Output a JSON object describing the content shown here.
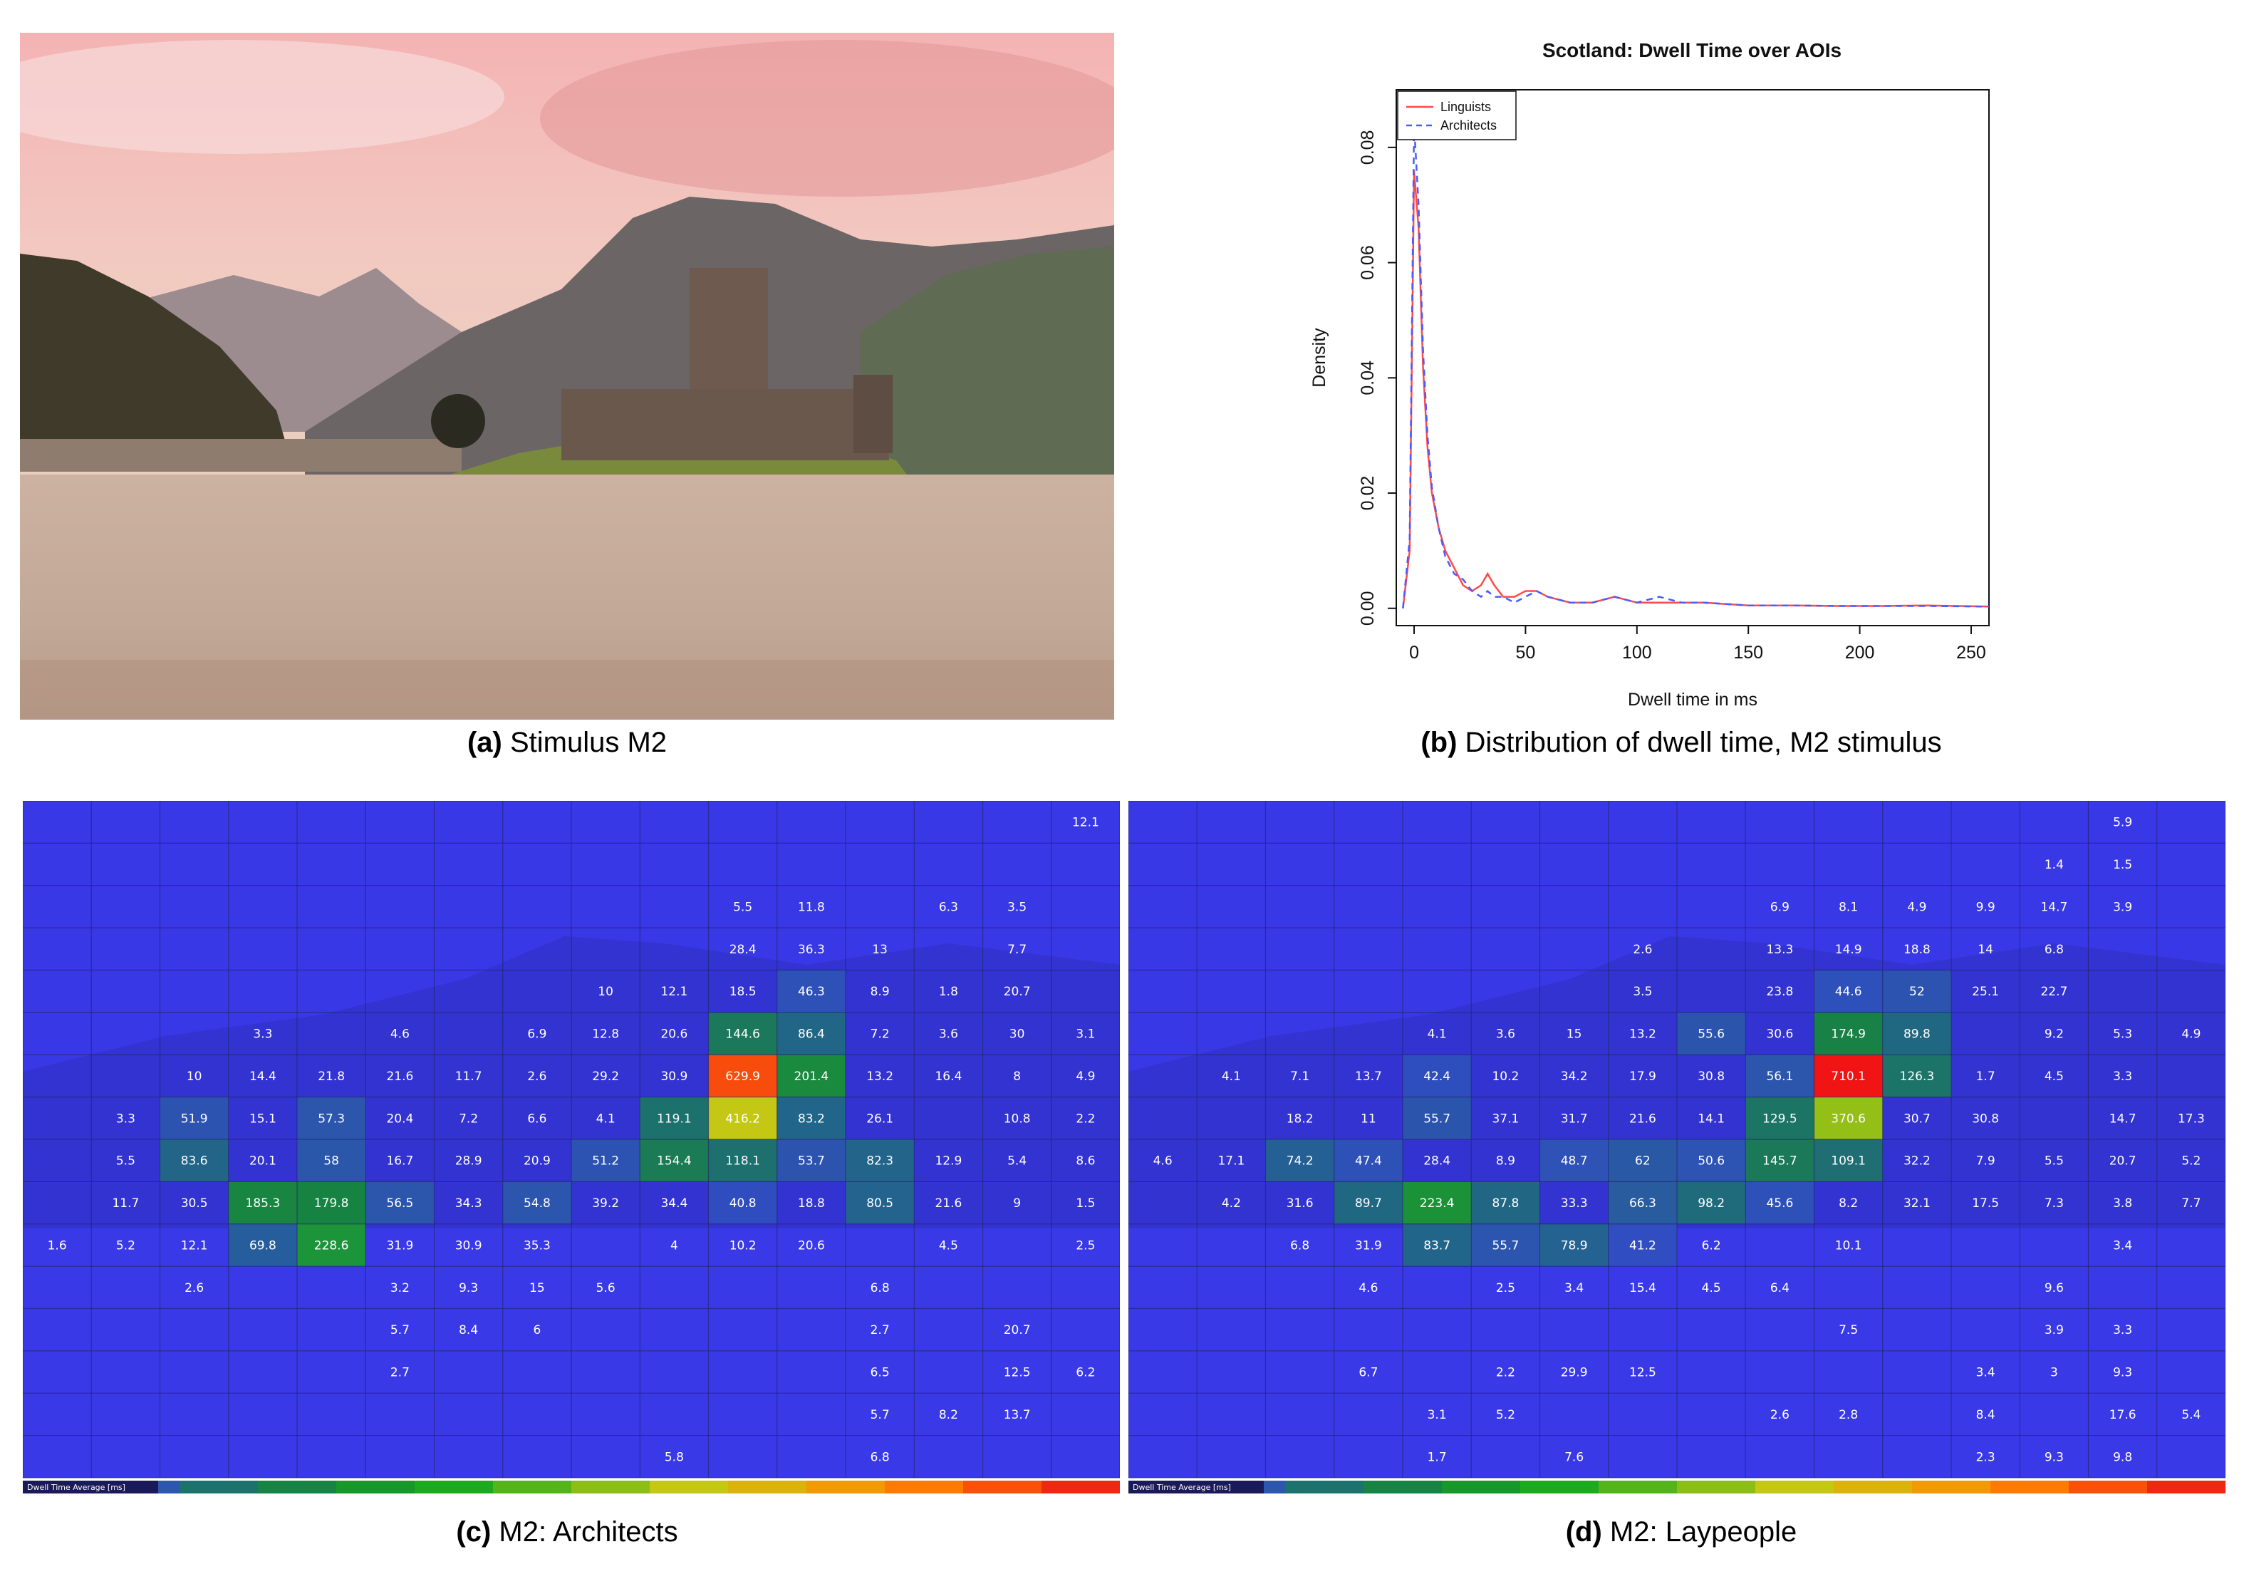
{
  "figure": {
    "captions": {
      "a": {
        "label": "(a)",
        "text": "Stimulus M2"
      },
      "b": {
        "label": "(b)",
        "text": "Distribution of dwell time, M2 stimulus"
      },
      "c": {
        "label": "(c)",
        "text": "M2: Architects"
      },
      "d": {
        "label": "(d)",
        "text": "M2: Laypeople"
      }
    }
  },
  "colors": {
    "linguists": "#ff4a4a",
    "architects": "#4a5cff",
    "heatmap_base": "#3a3ae0"
  },
  "chart_data": [
    {
      "type": "line",
      "title": "Scotland: Dwell Time over AOIs",
      "xlabel": "Dwell time in ms",
      "ylabel": "Density",
      "xlim": [
        -8,
        258
      ],
      "ylim": [
        -0.003,
        0.09
      ],
      "xticks": [
        0,
        50,
        100,
        150,
        200,
        250
      ],
      "yticks": [
        0.0,
        0.02,
        0.04,
        0.06,
        0.08
      ],
      "ytick_labels": [
        "0.00",
        "0.02",
        "0.04",
        "0.06",
        "0.08"
      ],
      "legend": "top-left",
      "series": [
        {
          "name": "Linguists",
          "style": "solid",
          "color": "#ff4a4a",
          "x": [
            -5,
            -2,
            0,
            2,
            4,
            6,
            8,
            11,
            14,
            18,
            22,
            26,
            30,
            33,
            36,
            40,
            45,
            50,
            55,
            60,
            70,
            80,
            90,
            100,
            110,
            120,
            130,
            150,
            170,
            190,
            210,
            230,
            258
          ],
          "y": [
            0.0,
            0.01,
            0.076,
            0.066,
            0.042,
            0.028,
            0.02,
            0.014,
            0.01,
            0.007,
            0.004,
            0.003,
            0.004,
            0.006,
            0.004,
            0.002,
            0.002,
            0.003,
            0.003,
            0.002,
            0.001,
            0.001,
            0.002,
            0.001,
            0.001,
            0.001,
            0.001,
            0.0005,
            0.0005,
            0.0004,
            0.0004,
            0.0005,
            0.0003
          ]
        },
        {
          "name": "Architects",
          "style": "dashed",
          "color": "#4a5cff",
          "x": [
            -5,
            -2,
            0,
            2,
            4,
            6,
            8,
            11,
            14,
            18,
            22,
            26,
            30,
            33,
            36,
            40,
            45,
            50,
            55,
            60,
            70,
            80,
            90,
            100,
            110,
            120,
            130,
            150,
            170,
            190,
            210,
            230,
            258
          ],
          "y": [
            0.0,
            0.012,
            0.084,
            0.07,
            0.045,
            0.03,
            0.021,
            0.014,
            0.009,
            0.006,
            0.005,
            0.003,
            0.002,
            0.003,
            0.002,
            0.002,
            0.001,
            0.002,
            0.003,
            0.002,
            0.001,
            0.001,
            0.002,
            0.001,
            0.002,
            0.001,
            0.001,
            0.0005,
            0.0005,
            0.0004,
            0.0004,
            0.0004,
            0.0003
          ]
        }
      ]
    },
    {
      "type": "heatmap",
      "panel": "c",
      "title": "",
      "legend_label": "Dwell Time Average [ms]",
      "cols": 16,
      "rows": 16,
      "cells": [
        [
          0,
          15,
          "12.1"
        ],
        [
          2,
          10,
          "5.5"
        ],
        [
          2,
          11,
          "11.8"
        ],
        [
          2,
          13,
          "6.3"
        ],
        [
          2,
          14,
          "3.5"
        ],
        [
          3,
          10,
          "28.4"
        ],
        [
          3,
          11,
          "36.3"
        ],
        [
          3,
          12,
          "13"
        ],
        [
          3,
          14,
          "7.7"
        ],
        [
          4,
          8,
          "10"
        ],
        [
          4,
          9,
          "12.1"
        ],
        [
          4,
          10,
          "18.5"
        ],
        [
          4,
          11,
          "46.3"
        ],
        [
          4,
          12,
          "8.9"
        ],
        [
          4,
          13,
          "1.8"
        ],
        [
          4,
          14,
          "20.7"
        ],
        [
          5,
          3,
          "3.3"
        ],
        [
          5,
          5,
          "4.6"
        ],
        [
          5,
          7,
          "6.9"
        ],
        [
          5,
          8,
          "12.8"
        ],
        [
          5,
          9,
          "20.6"
        ],
        [
          5,
          10,
          "144.6"
        ],
        [
          5,
          11,
          "86.4"
        ],
        [
          5,
          12,
          "7.2"
        ],
        [
          5,
          13,
          "3.6"
        ],
        [
          5,
          14,
          "30"
        ],
        [
          5,
          15,
          "3.1"
        ],
        [
          6,
          2,
          "10"
        ],
        [
          6,
          3,
          "14.4"
        ],
        [
          6,
          4,
          "21.8"
        ],
        [
          6,
          5,
          "21.6"
        ],
        [
          6,
          6,
          "11.7"
        ],
        [
          6,
          7,
          "2.6"
        ],
        [
          6,
          8,
          "29.2"
        ],
        [
          6,
          9,
          "30.9"
        ],
        [
          6,
          10,
          "629.9"
        ],
        [
          6,
          11,
          "201.4"
        ],
        [
          6,
          12,
          "13.2"
        ],
        [
          6,
          13,
          "16.4"
        ],
        [
          6,
          14,
          "8"
        ],
        [
          6,
          15,
          "4.9"
        ],
        [
          7,
          1,
          "3.3"
        ],
        [
          7,
          2,
          "51.9"
        ],
        [
          7,
          3,
          "15.1"
        ],
        [
          7,
          4,
          "57.3"
        ],
        [
          7,
          5,
          "20.4"
        ],
        [
          7,
          6,
          "7.2"
        ],
        [
          7,
          7,
          "6.6"
        ],
        [
          7,
          8,
          "4.1"
        ],
        [
          7,
          9,
          "119.1"
        ],
        [
          7,
          10,
          "416.2"
        ],
        [
          7,
          11,
          "83.2"
        ],
        [
          7,
          12,
          "26.1"
        ],
        [
          7,
          14,
          "10.8"
        ],
        [
          7,
          15,
          "2.2"
        ],
        [
          8,
          1,
          "5.5"
        ],
        [
          8,
          2,
          "83.6"
        ],
        [
          8,
          3,
          "20.1"
        ],
        [
          8,
          4,
          "58"
        ],
        [
          8,
          5,
          "16.7"
        ],
        [
          8,
          6,
          "28.9"
        ],
        [
          8,
          7,
          "20.9"
        ],
        [
          8,
          8,
          "51.2"
        ],
        [
          8,
          9,
          "154.4"
        ],
        [
          8,
          10,
          "118.1"
        ],
        [
          8,
          11,
          "53.7"
        ],
        [
          8,
          12,
          "82.3"
        ],
        [
          8,
          13,
          "12.9"
        ],
        [
          8,
          14,
          "5.4"
        ],
        [
          8,
          15,
          "8.6"
        ],
        [
          9,
          1,
          "11.7"
        ],
        [
          9,
          2,
          "30.5"
        ],
        [
          9,
          3,
          "185.3"
        ],
        [
          9,
          4,
          "179.8"
        ],
        [
          9,
          5,
          "56.5"
        ],
        [
          9,
          6,
          "34.3"
        ],
        [
          9,
          7,
          "54.8"
        ],
        [
          9,
          8,
          "39.2"
        ],
        [
          9,
          9,
          "34.4"
        ],
        [
          9,
          10,
          "40.8"
        ],
        [
          9,
          11,
          "18.8"
        ],
        [
          9,
          12,
          "80.5"
        ],
        [
          9,
          13,
          "21.6"
        ],
        [
          9,
          14,
          "9"
        ],
        [
          9,
          15,
          "1.5"
        ],
        [
          10,
          0,
          "1.6"
        ],
        [
          10,
          1,
          "5.2"
        ],
        [
          10,
          2,
          "12.1"
        ],
        [
          10,
          3,
          "69.8"
        ],
        [
          10,
          4,
          "228.6"
        ],
        [
          10,
          5,
          "31.9"
        ],
        [
          10,
          6,
          "30.9"
        ],
        [
          10,
          7,
          "35.3"
        ],
        [
          10,
          9,
          "4"
        ],
        [
          10,
          10,
          "10.2"
        ],
        [
          10,
          11,
          "20.6"
        ],
        [
          10,
          13,
          "4.5"
        ],
        [
          10,
          15,
          "2.5"
        ],
        [
          11,
          2,
          "2.6"
        ],
        [
          11,
          5,
          "3.2"
        ],
        [
          11,
          6,
          "9.3"
        ],
        [
          11,
          7,
          "15"
        ],
        [
          11,
          8,
          "5.6"
        ],
        [
          11,
          12,
          "6.8"
        ],
        [
          12,
          5,
          "5.7"
        ],
        [
          12,
          6,
          "8.4"
        ],
        [
          12,
          7,
          "6"
        ],
        [
          12,
          12,
          "2.7"
        ],
        [
          12,
          14,
          "20.7"
        ],
        [
          13,
          5,
          "2.7"
        ],
        [
          13,
          12,
          "6.5"
        ],
        [
          13,
          14,
          "12.5"
        ],
        [
          13,
          15,
          "6.2"
        ],
        [
          14,
          12,
          "5.7"
        ],
        [
          14,
          13,
          "8.2"
        ],
        [
          14,
          14,
          "13.7"
        ],
        [
          15,
          9,
          "5.8"
        ],
        [
          15,
          12,
          "6.8"
        ]
      ]
    },
    {
      "type": "heatmap",
      "panel": "d",
      "title": "",
      "legend_label": "Dwell Time Average [ms]",
      "cols": 16,
      "rows": 16,
      "cells": [
        [
          0,
          14,
          "5.9"
        ],
        [
          1,
          13,
          "1.4"
        ],
        [
          1,
          14,
          "1.5"
        ],
        [
          2,
          9,
          "6.9"
        ],
        [
          2,
          10,
          "8.1"
        ],
        [
          2,
          11,
          "4.9"
        ],
        [
          2,
          12,
          "9.9"
        ],
        [
          2,
          13,
          "14.7"
        ],
        [
          2,
          14,
          "3.9"
        ],
        [
          3,
          7,
          "2.6"
        ],
        [
          3,
          9,
          "13.3"
        ],
        [
          3,
          10,
          "14.9"
        ],
        [
          3,
          11,
          "18.8"
        ],
        [
          3,
          12,
          "14"
        ],
        [
          3,
          13,
          "6.8"
        ],
        [
          4,
          7,
          "3.5"
        ],
        [
          4,
          9,
          "23.8"
        ],
        [
          4,
          10,
          "44.6"
        ],
        [
          4,
          11,
          "52"
        ],
        [
          4,
          12,
          "25.1"
        ],
        [
          4,
          13,
          "22.7"
        ],
        [
          5,
          4,
          "4.1"
        ],
        [
          5,
          5,
          "3.6"
        ],
        [
          5,
          6,
          "15"
        ],
        [
          5,
          7,
          "13.2"
        ],
        [
          5,
          8,
          "55.6"
        ],
        [
          5,
          9,
          "30.6"
        ],
        [
          5,
          10,
          "174.9"
        ],
        [
          5,
          11,
          "89.8"
        ],
        [
          5,
          13,
          "9.2"
        ],
        [
          5,
          14,
          "5.3"
        ],
        [
          5,
          15,
          "4.9"
        ],
        [
          6,
          1,
          "4.1"
        ],
        [
          6,
          2,
          "7.1"
        ],
        [
          6,
          3,
          "13.7"
        ],
        [
          6,
          4,
          "42.4"
        ],
        [
          6,
          5,
          "10.2"
        ],
        [
          6,
          6,
          "34.2"
        ],
        [
          6,
          7,
          "17.9"
        ],
        [
          6,
          8,
          "30.8"
        ],
        [
          6,
          9,
          "56.1"
        ],
        [
          6,
          10,
          "710.1"
        ],
        [
          6,
          11,
          "126.3"
        ],
        [
          6,
          12,
          "1.7"
        ],
        [
          6,
          13,
          "4.5"
        ],
        [
          6,
          14,
          "3.3"
        ],
        [
          7,
          2,
          "18.2"
        ],
        [
          7,
          3,
          "11"
        ],
        [
          7,
          4,
          "55.7"
        ],
        [
          7,
          5,
          "37.1"
        ],
        [
          7,
          6,
          "31.7"
        ],
        [
          7,
          7,
          "21.6"
        ],
        [
          7,
          8,
          "14.1"
        ],
        [
          7,
          9,
          "129.5"
        ],
        [
          7,
          10,
          "370.6"
        ],
        [
          7,
          11,
          "30.7"
        ],
        [
          7,
          12,
          "30.8"
        ],
        [
          7,
          14,
          "14.7"
        ],
        [
          7,
          15,
          "17.3"
        ],
        [
          8,
          0,
          "4.6"
        ],
        [
          8,
          1,
          "17.1"
        ],
        [
          8,
          2,
          "74.2"
        ],
        [
          8,
          3,
          "47.4"
        ],
        [
          8,
          4,
          "28.4"
        ],
        [
          8,
          5,
          "8.9"
        ],
        [
          8,
          6,
          "48.7"
        ],
        [
          8,
          7,
          "62"
        ],
        [
          8,
          8,
          "50.6"
        ],
        [
          8,
          9,
          "145.7"
        ],
        [
          8,
          10,
          "109.1"
        ],
        [
          8,
          11,
          "32.2"
        ],
        [
          8,
          12,
          "7.9"
        ],
        [
          8,
          13,
          "5.5"
        ],
        [
          8,
          14,
          "20.7"
        ],
        [
          8,
          15,
          "5.2"
        ],
        [
          9,
          1,
          "4.2"
        ],
        [
          9,
          2,
          "31.6"
        ],
        [
          9,
          3,
          "89.7"
        ],
        [
          9,
          4,
          "223.4"
        ],
        [
          9,
          5,
          "87.8"
        ],
        [
          9,
          6,
          "33.3"
        ],
        [
          9,
          7,
          "66.3"
        ],
        [
          9,
          8,
          "98.2"
        ],
        [
          9,
          9,
          "45.6"
        ],
        [
          9,
          10,
          "8.2"
        ],
        [
          9,
          11,
          "32.1"
        ],
        [
          9,
          12,
          "17.5"
        ],
        [
          9,
          13,
          "7.3"
        ],
        [
          9,
          14,
          "3.8"
        ],
        [
          9,
          15,
          "7.7"
        ],
        [
          10,
          2,
          "6.8"
        ],
        [
          10,
          3,
          "31.9"
        ],
        [
          10,
          4,
          "83.7"
        ],
        [
          10,
          5,
          "55.7"
        ],
        [
          10,
          6,
          "78.9"
        ],
        [
          10,
          7,
          "41.2"
        ],
        [
          10,
          8,
          "6.2"
        ],
        [
          10,
          10,
          "10.1"
        ],
        [
          10,
          14,
          "3.4"
        ],
        [
          11,
          3,
          "4.6"
        ],
        [
          11,
          5,
          "2.5"
        ],
        [
          11,
          6,
          "3.4"
        ],
        [
          11,
          7,
          "15.4"
        ],
        [
          11,
          8,
          "4.5"
        ],
        [
          11,
          9,
          "6.4"
        ],
        [
          11,
          13,
          "9.6"
        ],
        [
          12,
          10,
          "7.5"
        ],
        [
          12,
          13,
          "3.9"
        ],
        [
          12,
          14,
          "3.3"
        ],
        [
          13,
          3,
          "6.7"
        ],
        [
          13,
          5,
          "2.2"
        ],
        [
          13,
          6,
          "29.9"
        ],
        [
          13,
          7,
          "12.5"
        ],
        [
          13,
          12,
          "3.4"
        ],
        [
          13,
          13,
          "3"
        ],
        [
          13,
          14,
          "9.3"
        ],
        [
          14,
          4,
          "3.1"
        ],
        [
          14,
          5,
          "5.2"
        ],
        [
          14,
          9,
          "2.6"
        ],
        [
          14,
          10,
          "2.8"
        ],
        [
          14,
          12,
          "8.4"
        ],
        [
          14,
          14,
          "17.6"
        ],
        [
          14,
          15,
          "5.4"
        ],
        [
          15,
          4,
          "1.7"
        ],
        [
          15,
          6,
          "7.6"
        ],
        [
          15,
          12,
          "2.3"
        ],
        [
          15,
          13,
          "9.3"
        ],
        [
          15,
          14,
          "9.8"
        ]
      ]
    }
  ]
}
